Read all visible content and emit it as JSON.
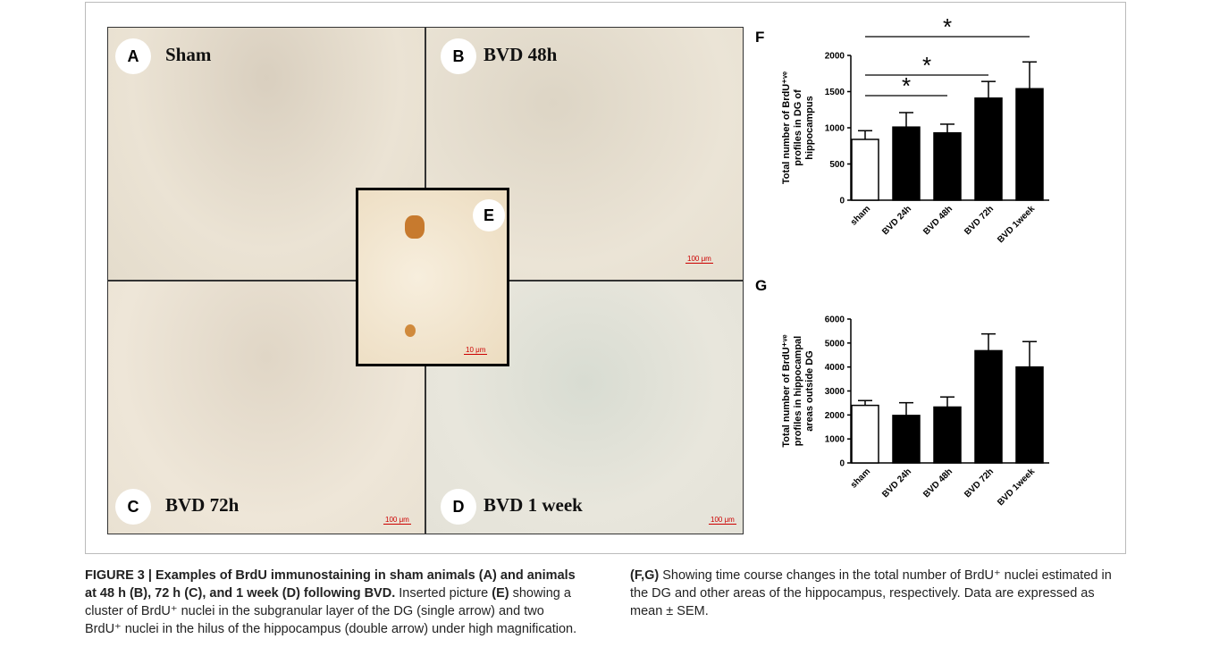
{
  "panels": [
    {
      "letter": "A",
      "label": "Sham"
    },
    {
      "letter": "B",
      "label": "BVD 48h",
      "scale": "100 μm"
    },
    {
      "letter": "C",
      "label": "BVD 72h",
      "scale": "100 μm"
    },
    {
      "letter": "D",
      "label": "BVD 1 week",
      "scale": "100 μm"
    }
  ],
  "inset": {
    "letter": "E",
    "scale": "10 μm"
  },
  "chart_data": [
    {
      "type": "bar",
      "label": "F",
      "categories": [
        "sham",
        "BVD 24h",
        "BVD 48h",
        "BVD 72h",
        "BVD 1week"
      ],
      "values": [
        840,
        1010,
        930,
        1410,
        1540
      ],
      "errors": [
        120,
        200,
        120,
        230,
        370
      ],
      "colors": [
        "#ffffff",
        "#000000",
        "#000000",
        "#000000",
        "#000000"
      ],
      "ylim": [
        0,
        2000
      ],
      "yticks": [
        0,
        500,
        1000,
        1500,
        2000
      ],
      "ylabel": [
        "Total number of BrdU⁺ᵛᵉ",
        "profiles in DG of",
        "hippocampus"
      ],
      "significance": [
        "*",
        "*",
        "*"
      ]
    },
    {
      "type": "bar",
      "label": "G",
      "categories": [
        "sham",
        "BVD 24h",
        "BVD 48h",
        "BVD 72h",
        "BVD 1week"
      ],
      "values": [
        2400,
        1980,
        2330,
        4680,
        4000
      ],
      "errors": [
        200,
        530,
        420,
        700,
        1060
      ],
      "colors": [
        "#ffffff",
        "#000000",
        "#000000",
        "#000000",
        "#000000"
      ],
      "ylim": [
        0,
        6000
      ],
      "yticks": [
        0,
        1000,
        2000,
        3000,
        4000,
        5000,
        6000
      ],
      "ylabel": [
        "Total number of BrdU⁺ᵛᵉ",
        "profiles in hippocampal",
        "areas outside DG"
      ]
    }
  ],
  "caption": {
    "title": "FIGURE 3 | Examples of BrdU immunostaining in sham animals (A) and animals at 48 h (B), 72 h (C), and 1 week (D) following BVD.",
    "body": [
      {
        "text": "Inserted picture ",
        "bold": false
      },
      {
        "text": "(E)",
        "bold": true
      },
      {
        "text": " showing a cluster of BrdU⁺ nuclei in the subgranular layer of the DG (single arrow) and two BrdU⁺ nuclei in the hilus of the hippocampus (double arrow) under high magnification. ",
        "bold": false
      },
      {
        "text": "(F,G)",
        "bold": true
      },
      {
        "text": " Showing time course changes in the total number of BrdU⁺ nuclei estimated in the DG and other areas of the hippocampus, respectively. Data are expressed as mean ± SEM.",
        "bold": false
      }
    ]
  }
}
